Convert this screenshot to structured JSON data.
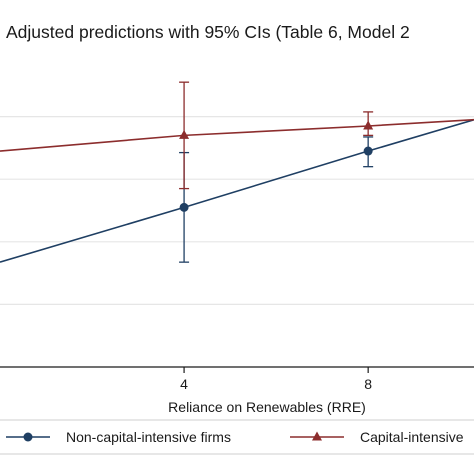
{
  "chart_data": {
    "type": "line",
    "title": "Adjusted predictions with 95% CIs (Table 6, Model 2",
    "xlabel": "Reliance on Renewables (RRE)",
    "ylabel": "",
    "x_ticks": [
      4,
      8
    ],
    "xlim": [
      0,
      10.3
    ],
    "ylim": [
      0,
      1
    ],
    "grid": true,
    "legend_placement": "bottom",
    "series": [
      {
        "name": "Non-capital-intensive firms",
        "color": "#1f3f63",
        "marker": "circle",
        "points": [
          {
            "x": 0,
            "y": 0.335
          },
          {
            "x": 4,
            "y": 0.51,
            "lo": 0.335,
            "hi": 0.685
          },
          {
            "x": 8,
            "y": 0.69,
            "lo": 0.64,
            "hi": 0.735
          },
          {
            "x": 10.3,
            "y": 0.79
          }
        ]
      },
      {
        "name": "Capital-intensive",
        "color": "#8c2d2d",
        "marker": "triangle",
        "points": [
          {
            "x": 0,
            "y": 0.69
          },
          {
            "x": 4,
            "y": 0.74,
            "lo": 0.57,
            "hi": 0.91
          },
          {
            "x": 8,
            "y": 0.77,
            "lo": 0.74,
            "hi": 0.815
          },
          {
            "x": 10.3,
            "y": 0.79
          }
        ]
      }
    ]
  }
}
